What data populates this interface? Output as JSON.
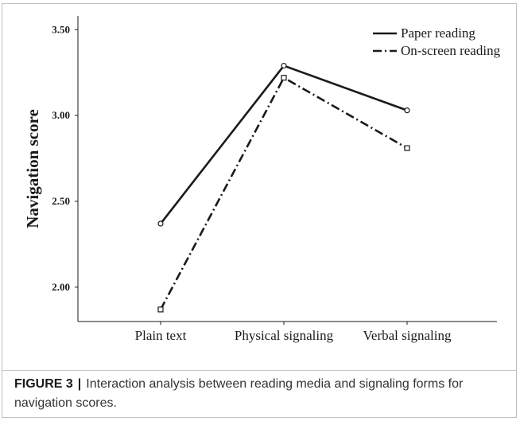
{
  "chart_data": {
    "type": "line",
    "categories": [
      "Plain text",
      "Physical signaling",
      "Verbal signaling"
    ],
    "series": [
      {
        "name": "Paper reading",
        "values": [
          2.37,
          3.29,
          3.03
        ],
        "line_style": "solid",
        "marker": "circle"
      },
      {
        "name": "On-screen reading",
        "values": [
          1.87,
          3.22,
          2.81
        ],
        "line_style": "dash-dot",
        "marker": "square"
      }
    ],
    "ylabel": "Navigation score",
    "xlabel": "",
    "ylim": [
      1.8,
      3.58
    ],
    "yticks": [
      "2.00",
      "2.50",
      "3.00",
      "3.50"
    ],
    "legend_position": "top-right",
    "grid": false,
    "line_color": "#1a1a1a"
  },
  "caption": {
    "figure_label": "FIGURE 3",
    "separator": "|",
    "text": "Interaction analysis between reading media and signaling forms for navigation scores."
  }
}
